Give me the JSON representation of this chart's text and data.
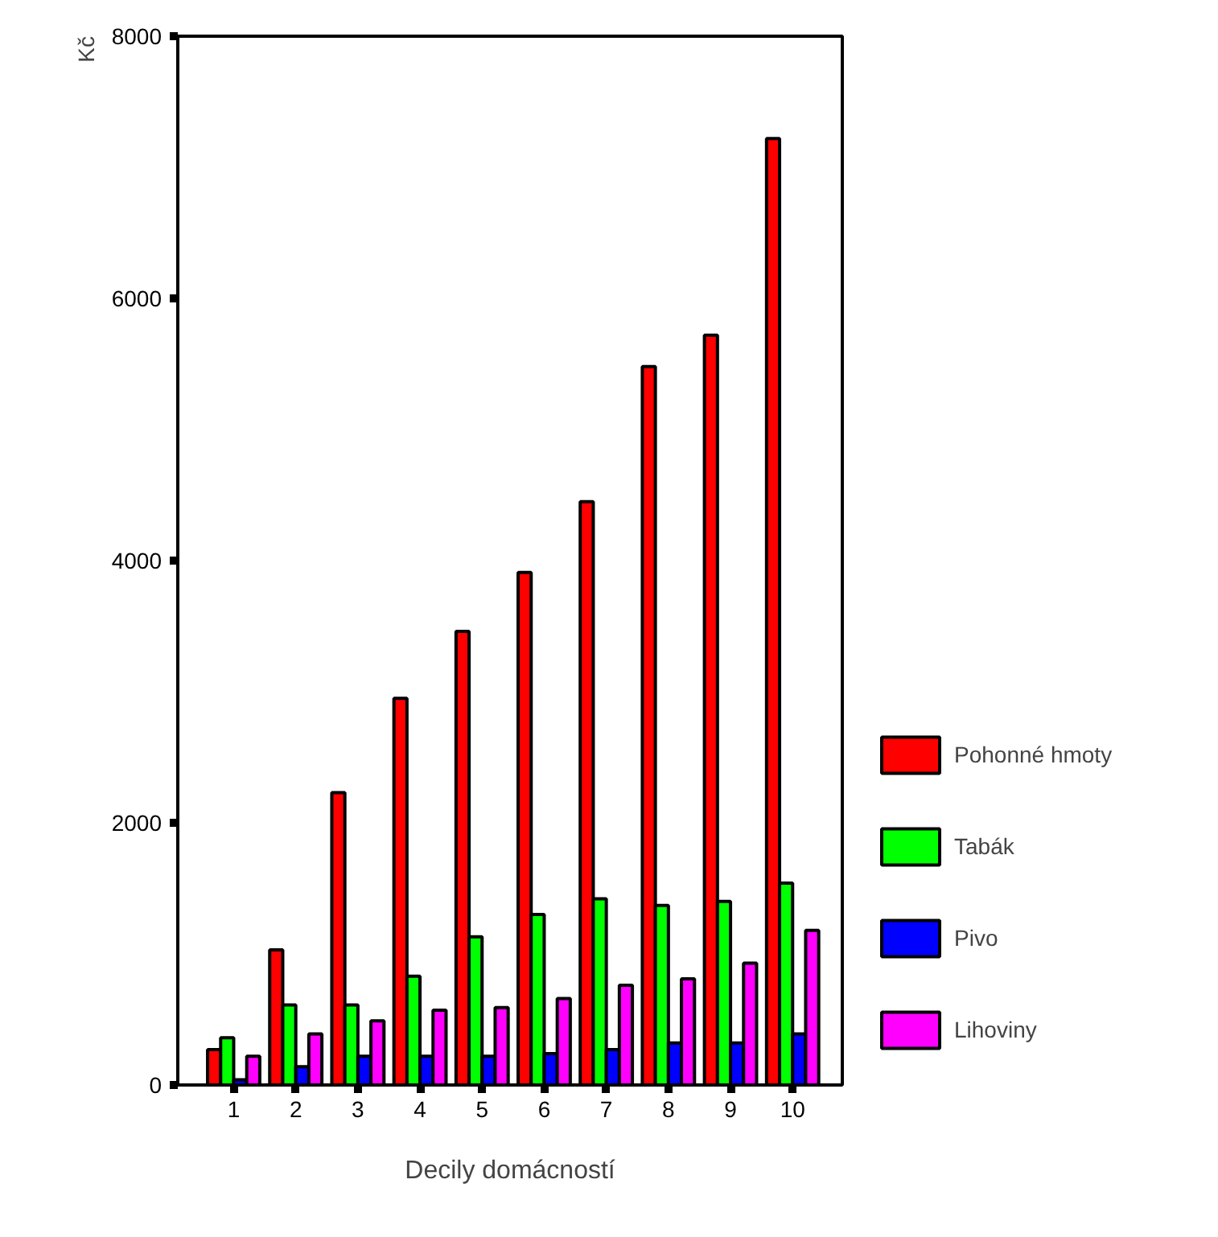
{
  "chart_data": {
    "type": "bar",
    "xlabel": "Decily domácností",
    "ylabel": "Kč",
    "categories": [
      "1",
      "2",
      "3",
      "4",
      "5",
      "6",
      "7",
      "8",
      "9",
      "10"
    ],
    "series": [
      {
        "name": "Pohonné hmoty",
        "color": "#ff0000",
        "values": [
          270,
          1030,
          2230,
          2950,
          3460,
          3910,
          4450,
          5480,
          5720,
          7220
        ]
      },
      {
        "name": "Tabák",
        "color": "#00ff00",
        "values": [
          360,
          610,
          610,
          830,
          1130,
          1300,
          1420,
          1370,
          1400,
          1540
        ]
      },
      {
        "name": "Pivo",
        "color": "#0000ff",
        "values": [
          40,
          140,
          220,
          220,
          220,
          240,
          270,
          320,
          320,
          390
        ]
      },
      {
        "name": "Lihoviny",
        "color": "#ff00ff",
        "values": [
          220,
          390,
          490,
          570,
          590,
          660,
          760,
          810,
          930,
          1180
        ]
      }
    ],
    "ylim": [
      0,
      8000
    ],
    "yticks": [
      0,
      2000,
      4000,
      6000,
      8000
    ],
    "grid": false,
    "legend": "right"
  }
}
